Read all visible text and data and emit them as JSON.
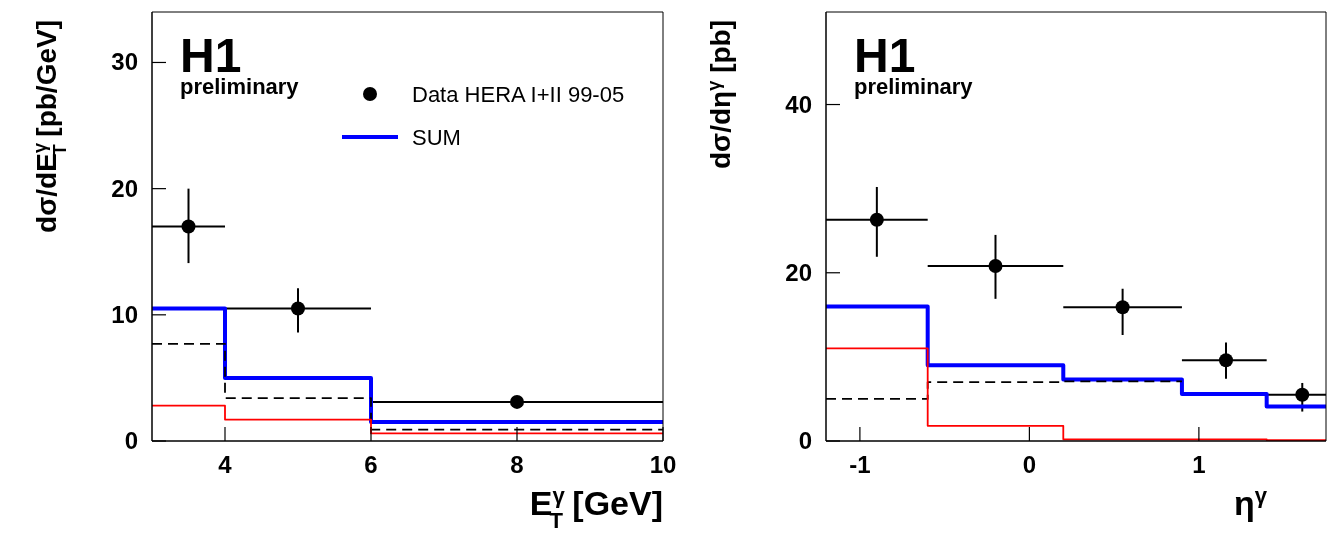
{
  "chart_data": [
    {
      "type": "step",
      "title": "H1",
      "subtitle": "preliminary",
      "xlabel": "E$^{γ}$$_{T}$ [GeV]",
      "ylabel": "dσ/dE$^{γ}$$_{T}$ [pb/GeV]",
      "xlim": [
        3,
        10
      ],
      "ylim": [
        0,
        34
      ],
      "xticks": [
        4,
        6,
        8,
        10
      ],
      "yticks": [
        0,
        10,
        20,
        30
      ],
      "legend": "top right",
      "grid": false,
      "series": [
        {
          "type": "scatter",
          "name": "Data HERA I+II 99-05",
          "color": "#000000",
          "marker": "circle",
          "x": [
            3.5,
            5,
            8
          ],
          "values": [
            17.0,
            10.5,
            3.1
          ],
          "errors": [
            [
              14.1,
              20.0
            ],
            [
              8.6,
              12.1
            ],
            null
          ],
          "xerrors": [
            [
              3,
              4
            ],
            [
              4,
              6
            ],
            [
              6,
              10
            ]
          ]
        },
        {
          "name": "SUM",
          "color": "#0000ff",
          "line_style": "solid",
          "x": [
            3,
            4,
            6,
            10
          ],
          "values": [
            10.5,
            5.0,
            1.5,
            1.5
          ]
        },
        {
          "color": "#000000",
          "line_style": "dashed",
          "x": [
            3,
            4,
            6,
            10
          ],
          "values": [
            7.7,
            3.4,
            0.9,
            0.9
          ]
        },
        {
          "color": "#ff0000",
          "line_style": "solid",
          "x": [
            3,
            4,
            6,
            10
          ],
          "values": [
            2.8,
            1.7,
            0.6,
            0.6
          ]
        }
      ]
    },
    {
      "type": "step",
      "title": "H1",
      "subtitle": "preliminary",
      "xlabel": "η$^{γ}$",
      "ylabel": "dσ/dη$^{γ}$ [pb]",
      "xlim": [
        -1.2,
        1.75
      ],
      "ylim": [
        0,
        51
      ],
      "xticks": [
        -1,
        0,
        1
      ],
      "yticks": [
        0,
        20,
        40
      ],
      "legend": false,
      "grid": false,
      "series": [
        {
          "type": "scatter",
          "color": "#000000",
          "marker": "circle",
          "x": [
            -0.9,
            -0.2,
            0.55,
            1.16,
            1.61
          ],
          "values": [
            26.3,
            20.8,
            15.9,
            9.6,
            5.5
          ],
          "errors": [
            [
              21.9,
              30.2
            ],
            [
              16.9,
              24.5
            ],
            [
              12.6,
              18.1
            ],
            [
              7.4,
              11.7
            ],
            [
              3.5,
              6.9
            ]
          ],
          "xerrors": [
            [
              -1.2,
              -0.6
            ],
            [
              -0.6,
              0.2
            ],
            [
              0.2,
              0.9
            ],
            [
              0.9,
              1.4
            ],
            [
              1.4,
              1.75
            ]
          ]
        },
        {
          "color": "#0000ff",
          "line_style": "solid",
          "x": [
            -1.2,
            -0.6,
            0.2,
            0.9,
            1.4,
            1.75
          ],
          "values": [
            16,
            9,
            7.3,
            5.6,
            4.1,
            4.1
          ]
        },
        {
          "color": "#000000",
          "line_style": "dashed",
          "x": [
            -1.2,
            -0.6,
            0.2,
            0.9
          ],
          "values": [
            5,
            7,
            7.1,
            7.1
          ]
        },
        {
          "color": "#ff0000",
          "line_style": "solid",
          "x": [
            -1.2,
            -0.6,
            0.2,
            0.9,
            1.4,
            1.75
          ],
          "values": [
            11,
            1.8,
            0.2,
            0.2,
            0.1,
            0.1
          ]
        }
      ]
    }
  ]
}
